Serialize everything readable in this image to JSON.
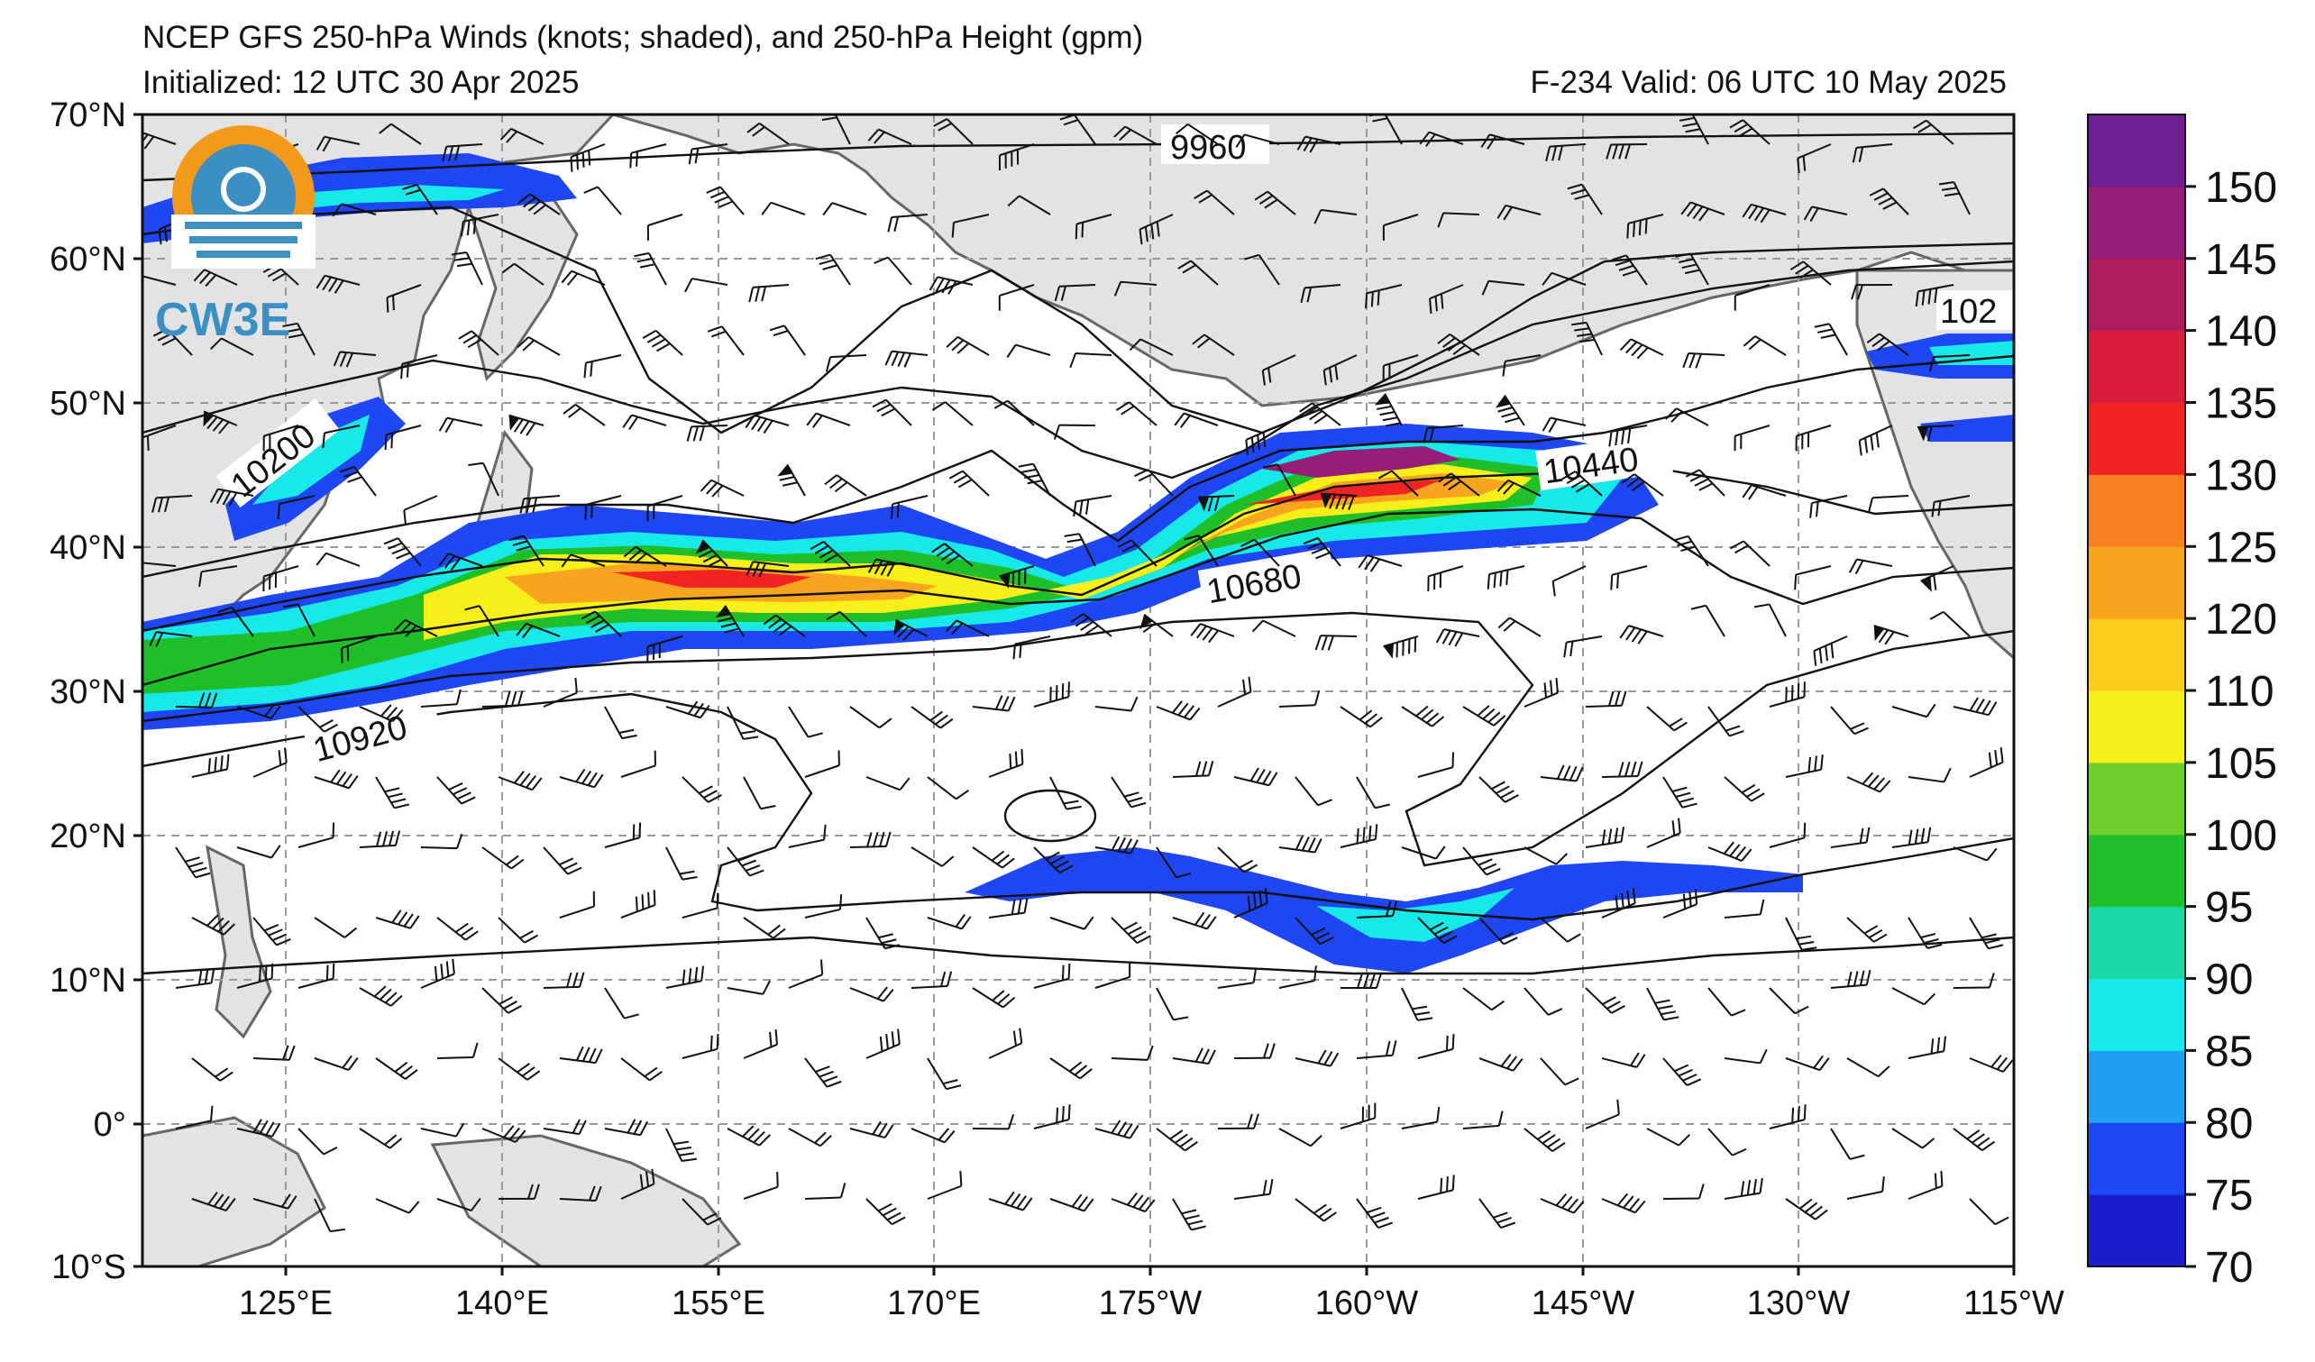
{
  "title": "NCEP GFS 250-hPa Winds (knots; shaded), and 250-hPa Height (gpm)",
  "initialized": "Initialized: 12 UTC 30 Apr 2025",
  "valid": "F-234  Valid: 06 UTC 10 May 2025",
  "logo": {
    "text": "CW3E",
    "icon": "cw3e-logo-icon"
  },
  "lat_labels": [
    "70°N",
    "60°N",
    "50°N",
    "40°N",
    "30°N",
    "20°N",
    "10°N",
    "0°",
    "10°S"
  ],
  "lon_labels": [
    "125°E",
    "140°E",
    "155°E",
    "170°E",
    "175°W",
    "160°W",
    "145°W",
    "130°W",
    "115°W"
  ],
  "colorbar": {
    "levels": [
      "70",
      "75",
      "80",
      "85",
      "90",
      "95",
      "100",
      "105",
      "110",
      "120",
      "125",
      "130",
      "135",
      "140",
      "145",
      "150"
    ],
    "colors": [
      "#1a1fcc",
      "#1e46f2",
      "#1fa0f5",
      "#17e8e8",
      "#1ad8a6",
      "#1fbf2a",
      "#6fcf2a",
      "#f7ee1a",
      "#f7cc1a",
      "#f7a41e",
      "#f77f1e",
      "#f22323",
      "#d81e3a",
      "#ae1e5f",
      "#961e79",
      "#6d1e91"
    ],
    "min": 70,
    "max": 155
  },
  "contour_labels": [
    {
      "text": "9960"
    },
    {
      "text": "10200"
    },
    {
      "text": "10440"
    },
    {
      "text": "10680"
    },
    {
      "text": "10920"
    },
    {
      "text": "102"
    }
  ],
  "map_colors": {
    "land": "#e3e3e3",
    "coast": "#666666",
    "grid": "#999999"
  }
}
